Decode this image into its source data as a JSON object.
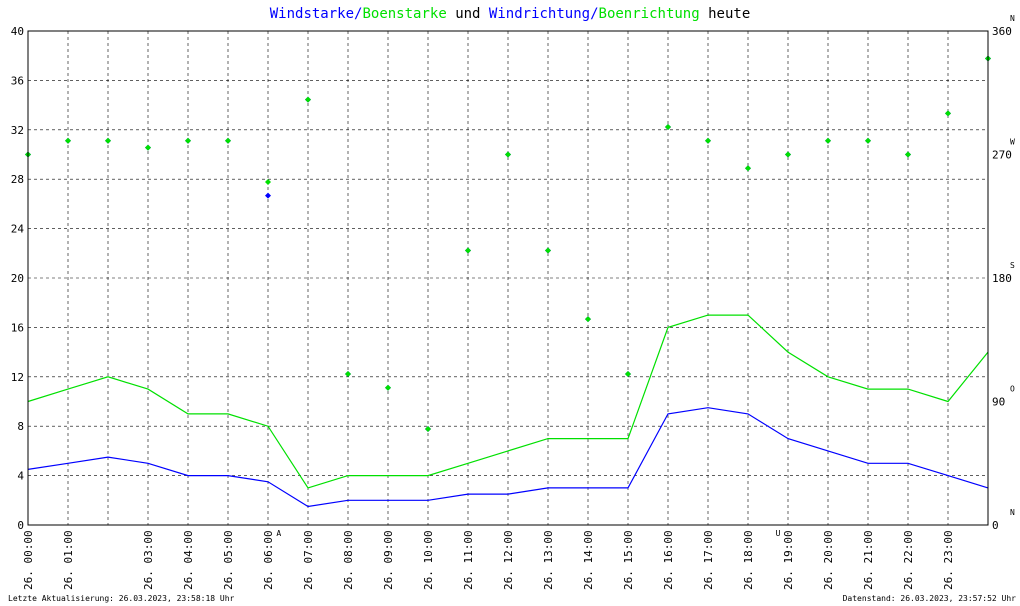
{
  "colors": {
    "wind": "#0000ff",
    "gust": "#00e000",
    "grid": "#000000",
    "sun_marker": "#ff0000"
  },
  "title": {
    "part1": "Windstarke",
    "sep1": "/",
    "part2": "Boenstarke",
    "mid": " und ",
    "part3": "Windrichtung",
    "sep2": "/",
    "part4": "Boenrichtung",
    "end": " heute"
  },
  "footer": {
    "left": "Letzte Aktualisierung: 26.03.2023, 23:58:18 Uhr",
    "right": "Datenstand: 26.03.2023, 23:57:52 Uhr"
  },
  "chart_data": {
    "type": "line",
    "title": "Windstarke/Boenstarke und Windrichtung/Boenrichtung heute",
    "ylim": [
      0,
      40
    ],
    "y_ticks": [
      "0",
      "4",
      "8",
      "12",
      "16",
      "20",
      "24",
      "28",
      "32",
      "36",
      "40"
    ],
    "y2lim": [
      0,
      360
    ],
    "y2_ticks": [
      "0",
      "90",
      "180",
      "270",
      "360"
    ],
    "y2_compass": [
      "N",
      "O",
      "S",
      "W",
      "N"
    ],
    "x_tick_labels": [
      "26. 00:00",
      "26. 01:00",
      "26. 03:00",
      "26. 04:00",
      "26. 05:00",
      "26. 06:00",
      "26. 07:00",
      "26. 08:00",
      "26. 09:00",
      "26. 10:00",
      "26. 11:00",
      "26. 12:00",
      "26. 13:00",
      "26. 14:00",
      "26. 15:00",
      "26. 16:00",
      "26. 17:00",
      "26. 18:00",
      "26. 19:00",
      "26. 20:00",
      "26. 21:00",
      "26. 22:00",
      "26. 23:00"
    ],
    "sun_markers": [
      {
        "label": "A",
        "hour": 6.27
      },
      {
        "label": "U",
        "hour": 18.75
      }
    ],
    "x_hour_range": [
      0,
      24
    ],
    "series": [
      {
        "name": "Windstarke",
        "kind": "line",
        "color": "#0000ff",
        "hours": [
          0,
          1,
          2,
          3,
          4,
          5,
          6,
          7,
          8,
          9,
          10,
          11,
          12,
          13,
          14,
          15,
          16,
          17,
          18,
          19,
          20,
          21,
          22,
          23,
          24
        ],
        "values": [
          4.5,
          5,
          5.5,
          5,
          4,
          4,
          3.5,
          1.5,
          2,
          2,
          2,
          2.5,
          2.5,
          3,
          3,
          3,
          9,
          9.5,
          9,
          7,
          6,
          5,
          5,
          4,
          3
        ]
      },
      {
        "name": "Boenstarke",
        "kind": "line",
        "color": "#00e000",
        "hours": [
          0,
          1,
          2,
          3,
          4,
          5,
          6,
          7,
          8,
          9,
          10,
          11,
          12,
          13,
          14,
          15,
          16,
          17,
          18,
          19,
          20,
          21,
          22,
          23,
          24
        ],
        "values": [
          10,
          11,
          12,
          11,
          9,
          9,
          8,
          3,
          4,
          4,
          4,
          5,
          6,
          7,
          7,
          7,
          16,
          17,
          17,
          14,
          12,
          11,
          11,
          10,
          14
        ]
      },
      {
        "name": "Windrichtung",
        "kind": "scatter",
        "color": "#0000ff",
        "hours": [
          0,
          1,
          2,
          3,
          4,
          5,
          6,
          7,
          8,
          9,
          10,
          11,
          12,
          13,
          14,
          15,
          16,
          17,
          18,
          19,
          20,
          21,
          22,
          23,
          24
        ],
        "values": [
          270,
          280,
          280,
          275,
          280,
          280,
          240,
          310,
          110,
          100,
          70,
          200,
          270,
          200,
          150,
          110,
          290,
          280,
          260,
          270,
          280,
          280,
          270,
          300,
          340
        ]
      },
      {
        "name": "Boenrichtung",
        "kind": "scatter",
        "color": "#00e000",
        "hours": [
          0,
          1,
          2,
          3,
          4,
          5,
          6,
          7,
          8,
          9,
          10,
          11,
          12,
          13,
          14,
          15,
          16,
          17,
          18,
          19,
          20,
          21,
          22,
          23,
          24
        ],
        "values": [
          270,
          280,
          280,
          275,
          280,
          280,
          250,
          310,
          110,
          100,
          70,
          200,
          270,
          200,
          150,
          110,
          290,
          280,
          260,
          270,
          280,
          280,
          270,
          300,
          340
        ]
      }
    ],
    "grid": true,
    "legend": "title"
  }
}
